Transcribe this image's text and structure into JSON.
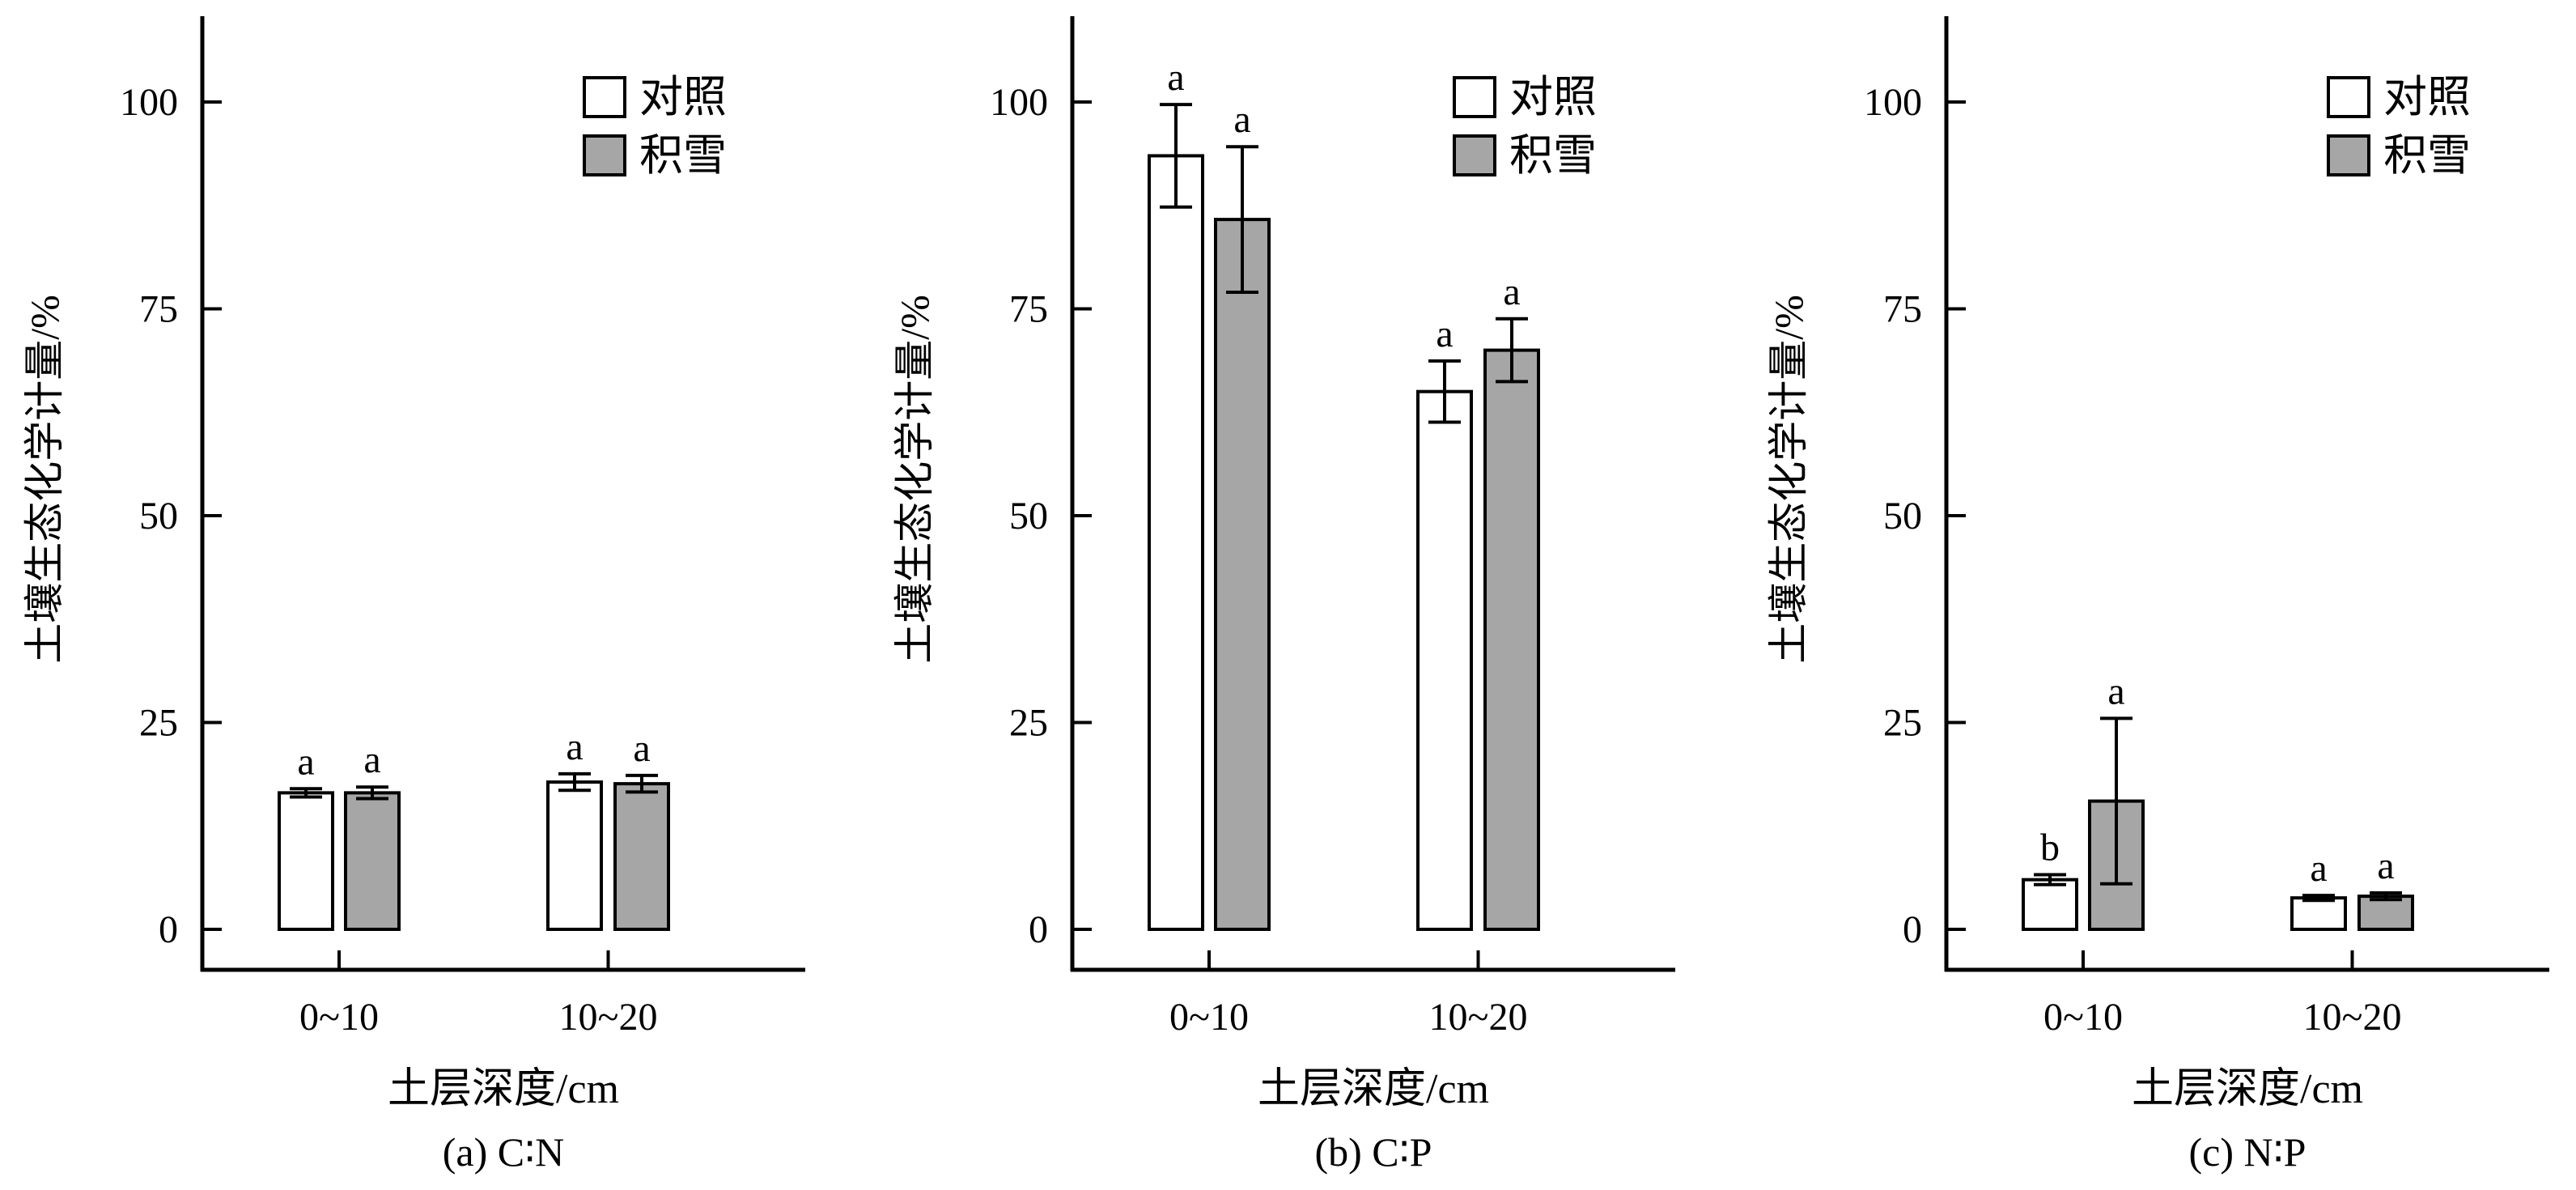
{
  "legend": {
    "control": "对照",
    "snow": "积雪"
  },
  "colors": {
    "control": "#ffffff",
    "snow": "#a6a6a6",
    "ink": "#000000"
  },
  "chart_data": [
    {
      "type": "bar",
      "categories": [
        "0~10",
        "10~20"
      ],
      "xlabel": "土层深度/cm",
      "ylabel": "土壤生态化学计量/%",
      "ylim": [
        0,
        110
      ],
      "yticks": [
        0,
        25,
        50,
        75,
        100
      ],
      "caption": "(a) C∶N",
      "legend_position": "top-right",
      "series": [
        {
          "name": "对照",
          "values": [
            16.5,
            17.8
          ],
          "errors": [
            0.5,
            1.0
          ],
          "letters": [
            "a",
            "a"
          ]
        },
        {
          "name": "积雪",
          "values": [
            16.5,
            17.6
          ],
          "errors": [
            0.7,
            1.0
          ],
          "letters": [
            "a",
            "a"
          ]
        }
      ]
    },
    {
      "type": "bar",
      "categories": [
        "0~10",
        "10~20"
      ],
      "xlabel": "土层深度/cm",
      "ylabel": "土壤生态化学计量/%",
      "ylim": [
        0,
        110
      ],
      "yticks": [
        0,
        25,
        50,
        75,
        100
      ],
      "caption": "(b) C∶P",
      "legend_position": "top-right",
      "series": [
        {
          "name": "对照",
          "values": [
            93.5,
            65.0
          ],
          "errors": [
            6.2,
            3.7
          ],
          "letters": [
            "a",
            "a"
          ]
        },
        {
          "name": "积雪",
          "values": [
            85.8,
            70.0
          ],
          "errors": [
            8.8,
            3.8
          ],
          "letters": [
            "a",
            "a"
          ]
        }
      ]
    },
    {
      "type": "bar",
      "categories": [
        "0~10",
        "10~20"
      ],
      "xlabel": "土层深度/cm",
      "ylabel": "土壤生态化学计量/%",
      "ylim": [
        0,
        110
      ],
      "yticks": [
        0,
        25,
        50,
        75,
        100
      ],
      "caption": "(c) N∶P",
      "legend_position": "top-right",
      "series": [
        {
          "name": "对照",
          "values": [
            6.0,
            3.8
          ],
          "errors": [
            0.6,
            0.3
          ],
          "letters": [
            "b",
            "a"
          ]
        },
        {
          "name": "积雪",
          "values": [
            15.5,
            4.0
          ],
          "errors": [
            10.0,
            0.4
          ],
          "letters": [
            "a",
            "a"
          ]
        }
      ]
    }
  ]
}
